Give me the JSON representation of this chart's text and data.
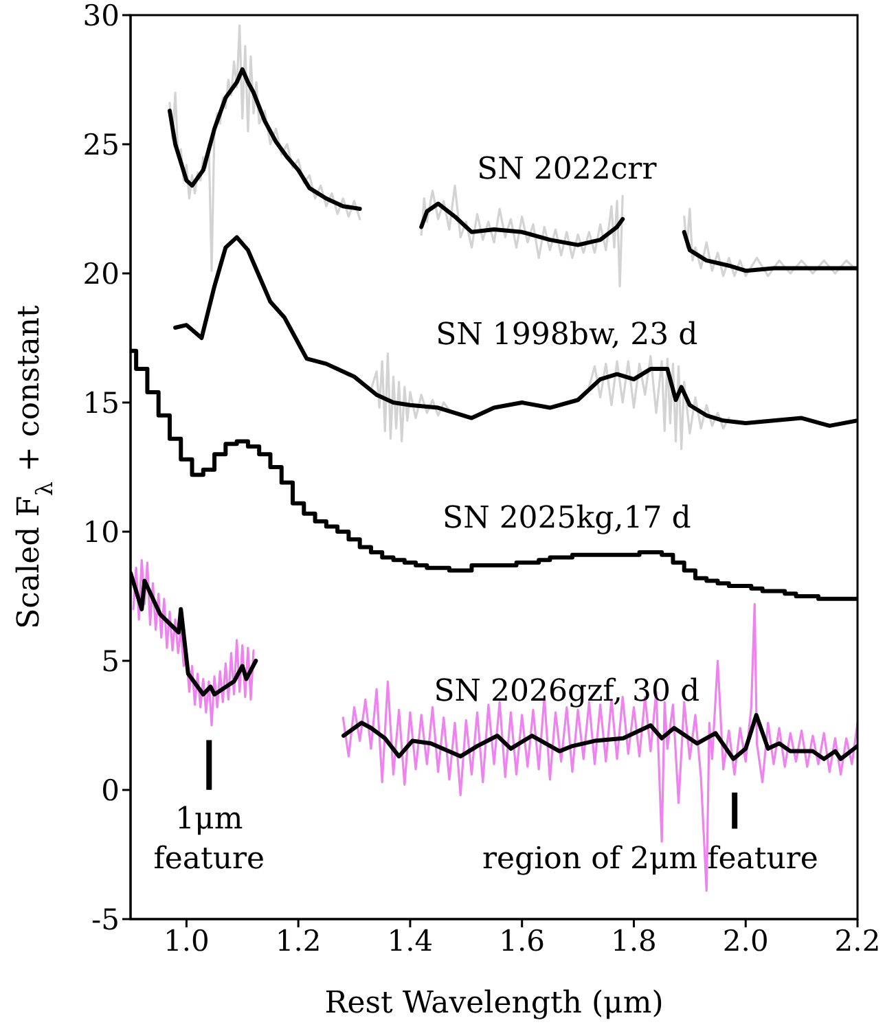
{
  "chart_data": {
    "type": "line",
    "xlabel": "Rest Wavelength (μm)",
    "ylabel": "Scaled F$_{λ}$ + constant",
    "xlim": [
      0.9,
      2.2
    ],
    "xticks": [
      {
        "value": 1,
        "label": "1.0"
      },
      1.2,
      1.4,
      1.6,
      1.8,
      {
        "value": 2,
        "label": "2.0"
      },
      2.2
    ],
    "ylim": [
      -5,
      30
    ],
    "yticks": [
      -5,
      0,
      5,
      10,
      15,
      20,
      25,
      30
    ],
    "grid": false,
    "legend": false,
    "marker": "none",
    "series": [
      {
        "color": "#d3d3d3",
        "x": [
          0.97,
          0.975,
          0.98,
          0.985,
          0.99,
          0.995,
          1.0,
          1.005,
          1.01,
          1.015,
          1.02,
          1.025,
          1.03,
          1.035,
          1.04,
          1.045,
          1.05,
          1.055,
          1.06,
          1.065,
          1.07,
          1.075,
          1.08,
          1.085,
          1.09,
          1.095,
          1.1,
          1.105,
          1.11,
          1.115,
          1.12,
          1.125,
          1.13,
          1.14,
          1.15,
          1.16,
          1.17,
          1.18,
          1.19,
          1.2,
          1.21,
          1.22,
          1.23,
          1.24,
          1.25,
          1.26,
          1.27,
          1.28,
          1.29,
          1.3,
          1.31,
          1.36,
          1.42,
          1.425,
          1.43,
          1.44,
          1.45,
          1.46,
          1.47,
          1.48,
          1.49,
          1.5,
          1.51,
          1.52,
          1.53,
          1.54,
          1.55,
          1.56,
          1.57,
          1.58,
          1.59,
          1.6,
          1.61,
          1.62,
          1.63,
          1.64,
          1.65,
          1.66,
          1.67,
          1.68,
          1.69,
          1.7,
          1.71,
          1.72,
          1.73,
          1.74,
          1.75,
          1.76,
          1.765,
          1.77,
          1.775,
          1.78,
          1.84,
          1.89,
          1.895,
          1.9,
          1.905,
          1.91,
          1.92,
          1.93,
          1.94,
          1.95,
          1.96,
          1.97,
          1.98,
          1.99,
          2.0,
          2.02,
          2.04,
          2.06,
          2.08,
          2.1,
          2.12,
          2.14,
          2.16,
          2.18,
          2.2
        ],
        "values": [
          26.6,
          25.2,
          27.0,
          24.5,
          24.8,
          23.6,
          24.2,
          22.9,
          23.8,
          23.1,
          23.9,
          23.6,
          24.5,
          24.1,
          25.0,
          20.1,
          25.6,
          26.2,
          25.8,
          26.8,
          26.4,
          27.5,
          26.9,
          28.2,
          27.2,
          29.6,
          26.0,
          28.8,
          25.5,
          28.4,
          26.2,
          27.4,
          25.8,
          26.3,
          25.0,
          25.6,
          24.6,
          25.0,
          24.1,
          24.4,
          23.5,
          23.8,
          22.9,
          23.4,
          22.6,
          23.1,
          22.3,
          22.9,
          22.2,
          22.8,
          22.1,
          null,
          21.5,
          22.9,
          22.0,
          23.2,
          22.1,
          22.8,
          21.7,
          23.4,
          21.4,
          22.0,
          21.0,
          22.3,
          21.3,
          22.0,
          21.2,
          22.5,
          21.4,
          22.1,
          21.0,
          22.2,
          21.2,
          21.9,
          20.6,
          21.8,
          20.9,
          21.7,
          20.7,
          21.6,
          20.6,
          21.5,
          20.8,
          21.6,
          20.8,
          21.9,
          20.9,
          22.6,
          21.0,
          22.8,
          19.5,
          23.0,
          null,
          22.2,
          21.0,
          22.5,
          20.5,
          21.0,
          20.2,
          21.2,
          20.1,
          20.8,
          19.9,
          20.6,
          19.9,
          20.5,
          19.9,
          20.6,
          19.9,
          20.5,
          20.0,
          20.5,
          20.0,
          20.5,
          20.0,
          20.5,
          20.1
        ]
      },
      {
        "name": "SN 2022crr",
        "color": "#000000",
        "x": [
          0.97,
          0.98,
          1.0,
          1.01,
          1.03,
          1.05,
          1.07,
          1.09,
          1.1,
          1.11,
          1.12,
          1.14,
          1.16,
          1.18,
          1.2,
          1.22,
          1.25,
          1.28,
          1.31,
          1.36,
          1.42,
          1.43,
          1.45,
          1.48,
          1.51,
          1.55,
          1.6,
          1.65,
          1.7,
          1.74,
          1.77,
          1.78,
          1.84,
          1.89,
          1.9,
          1.93,
          1.97,
          2.0,
          2.05,
          2.1,
          2.15,
          2.2
        ],
        "values": [
          26.3,
          25.0,
          23.6,
          23.4,
          24.0,
          25.6,
          26.8,
          27.4,
          27.9,
          27.4,
          27.0,
          25.9,
          25.1,
          24.5,
          24.0,
          23.3,
          22.9,
          22.6,
          22.5,
          null,
          21.8,
          22.4,
          22.7,
          22.2,
          21.6,
          21.7,
          21.6,
          21.3,
          21.1,
          21.3,
          21.8,
          22.1,
          null,
          21.6,
          20.9,
          20.5,
          20.3,
          20.1,
          20.2,
          20.2,
          20.2,
          20.2
        ]
      },
      {
        "color": "#d3d3d3",
        "x": [
          1.33,
          1.34,
          1.345,
          1.35,
          1.355,
          1.36,
          1.365,
          1.37,
          1.375,
          1.38,
          1.385,
          1.39,
          1.395,
          1.4,
          1.41,
          1.42,
          1.43,
          1.44,
          1.45,
          1.46,
          1.47,
          1.6,
          1.72,
          1.73,
          1.74,
          1.75,
          1.76,
          1.77,
          1.78,
          1.79,
          1.8,
          1.81,
          1.82,
          1.83,
          1.84,
          1.85,
          1.855,
          1.86,
          1.865,
          1.87,
          1.875,
          1.88,
          1.885,
          1.89,
          1.9,
          1.91,
          1.92,
          1.93,
          1.94,
          1.95,
          1.96,
          1.97
        ],
        "values": [
          15.5,
          16.2,
          14.8,
          16.6,
          13.9,
          16.9,
          13.6,
          16.0,
          14.0,
          15.8,
          13.5,
          15.6,
          14.3,
          15.4,
          14.4,
          15.3,
          14.6,
          15.1,
          14.5,
          15.0,
          14.7,
          null,
          15.6,
          16.4,
          15.2,
          16.5,
          14.9,
          16.6,
          15.0,
          16.6,
          14.8,
          16.5,
          15.3,
          16.8,
          14.6,
          16.6,
          13.9,
          16.7,
          14.2,
          16.5,
          13.5,
          16.4,
          13.2,
          15.8,
          13.8,
          15.2,
          14.0,
          14.9,
          14.1,
          14.6,
          14.0,
          14.4
        ]
      },
      {
        "name": "SN 1998bw, 23 d",
        "color": "#000000",
        "x": [
          0.98,
          1.0,
          1.027,
          1.05,
          1.07,
          1.09,
          1.11,
          1.13,
          1.15,
          1.175,
          1.2,
          1.215,
          1.25,
          1.3,
          1.34,
          1.37,
          1.4,
          1.45,
          1.48,
          1.51,
          1.55,
          1.6,
          1.65,
          1.7,
          1.74,
          1.77,
          1.8,
          1.83,
          1.86,
          1.875,
          1.885,
          1.9,
          1.93,
          1.96,
          2.0,
          2.05,
          2.1,
          2.15,
          2.2
        ],
        "values": [
          17.9,
          18.0,
          17.5,
          19.5,
          21.0,
          21.4,
          20.9,
          19.9,
          18.9,
          18.3,
          17.3,
          16.7,
          16.5,
          16.0,
          15.3,
          15.0,
          14.9,
          14.8,
          14.6,
          14.4,
          14.8,
          15.0,
          14.8,
          15.1,
          15.9,
          16.1,
          15.9,
          16.3,
          16.3,
          15.1,
          15.6,
          14.9,
          14.5,
          14.3,
          14.2,
          14.3,
          14.4,
          14.1,
          14.3
        ]
      },
      {
        "type": "step",
        "name": "SN 2025kg,17 d",
        "color": "#000000",
        "x": [
          0.9,
          0.92,
          0.94,
          0.96,
          0.98,
          1.0,
          1.02,
          1.04,
          1.06,
          1.08,
          1.1,
          1.12,
          1.14,
          1.16,
          1.18,
          1.2,
          1.22,
          1.24,
          1.26,
          1.28,
          1.3,
          1.32,
          1.34,
          1.36,
          1.38,
          1.4,
          1.42,
          1.44,
          1.46,
          1.48,
          1.5,
          1.52,
          1.54,
          1.56,
          1.58,
          1.6,
          1.62,
          1.64,
          1.66,
          1.68,
          1.7,
          1.72,
          1.74,
          1.76,
          1.78,
          1.8,
          1.82,
          1.84,
          1.86,
          1.88,
          1.9,
          1.92,
          1.94,
          1.96,
          1.98,
          2.0,
          2.02,
          2.04,
          2.06,
          2.08,
          2.1,
          2.12,
          2.14,
          2.16,
          2.18,
          2.2
        ],
        "values": [
          17.0,
          16.3,
          15.4,
          14.5,
          13.6,
          12.8,
          12.2,
          12.4,
          13.0,
          13.4,
          13.5,
          13.3,
          13.0,
          12.5,
          11.9,
          11.1,
          10.7,
          10.4,
          10.2,
          10.0,
          9.7,
          9.4,
          9.2,
          9.0,
          8.9,
          8.8,
          8.7,
          8.6,
          8.6,
          8.5,
          8.5,
          8.7,
          8.7,
          8.7,
          8.7,
          8.8,
          8.8,
          8.9,
          9.0,
          9.0,
          9.1,
          9.1,
          9.1,
          9.1,
          9.1,
          9.1,
          9.2,
          9.2,
          9.1,
          8.8,
          8.5,
          8.2,
          8.1,
          8.0,
          7.9,
          7.9,
          7.8,
          7.7,
          7.7,
          7.6,
          7.5,
          7.5,
          7.4,
          7.4,
          7.4,
          7.4
        ]
      },
      {
        "color": "#ee82ee",
        "x": [
          0.905,
          0.91,
          0.915,
          0.92,
          0.925,
          0.93,
          0.935,
          0.94,
          0.945,
          0.95,
          0.955,
          0.96,
          0.965,
          0.97,
          0.975,
          0.98,
          0.985,
          0.99,
          0.995,
          1.0,
          1.005,
          1.01,
          1.015,
          1.02,
          1.025,
          1.03,
          1.035,
          1.04,
          1.045,
          1.05,
          1.055,
          1.06,
          1.065,
          1.07,
          1.075,
          1.08,
          1.085,
          1.09,
          1.095,
          1.1,
          1.105,
          1.11,
          1.115,
          1.12,
          1.2,
          1.28,
          1.29,
          1.3,
          1.31,
          1.32,
          1.33,
          1.34,
          1.35,
          1.36,
          1.37,
          1.38,
          1.39,
          1.4,
          1.41,
          1.42,
          1.43,
          1.44,
          1.45,
          1.46,
          1.47,
          1.48,
          1.49,
          1.5,
          1.51,
          1.52,
          1.53,
          1.54,
          1.55,
          1.56,
          1.57,
          1.58,
          1.59,
          1.6,
          1.61,
          1.62,
          1.63,
          1.64,
          1.65,
          1.66,
          1.67,
          1.68,
          1.69,
          1.7,
          1.71,
          1.72,
          1.73,
          1.74,
          1.75,
          1.76,
          1.77,
          1.78,
          1.79,
          1.8,
          1.81,
          1.82,
          1.83,
          1.84,
          1.85,
          1.855,
          1.86,
          1.87,
          1.88,
          1.89,
          1.9,
          1.91,
          1.92,
          1.93,
          1.935,
          1.94,
          1.95,
          1.96,
          1.97,
          1.98,
          1.99,
          2.0,
          2.01,
          2.016,
          2.02,
          2.03,
          2.04,
          2.05,
          2.06,
          2.07,
          2.08,
          2.09,
          2.1,
          2.11,
          2.12,
          2.13,
          2.14,
          2.15,
          2.16,
          2.17,
          2.18,
          2.19,
          2.2
        ],
        "values": [
          7.0,
          8.6,
          6.6,
          8.9,
          7.2,
          8.8,
          6.4,
          8.0,
          6.2,
          7.6,
          5.9,
          7.4,
          5.5,
          6.9,
          5.4,
          6.6,
          5.3,
          6.2,
          4.8,
          5.2,
          3.8,
          4.8,
          3.3,
          4.5,
          3.2,
          4.3,
          3.0,
          4.2,
          2.5,
          4.4,
          3.2,
          4.6,
          3.4,
          4.9,
          3.5,
          5.3,
          3.7,
          5.8,
          3.8,
          5.6,
          3.6,
          5.5,
          3.5,
          5.4,
          null,
          2.8,
          1.3,
          3.2,
          1.9,
          3.5,
          1.6,
          3.9,
          0.3,
          4.2,
          0.6,
          3.1,
          0.2,
          3.0,
          0.8,
          2.9,
          1.0,
          3.2,
          0.7,
          2.8,
          0.4,
          2.6,
          -0.2,
          2.7,
          0.6,
          3.0,
          0.3,
          3.3,
          1.0,
          3.4,
          0.5,
          3.0,
          0.6,
          2.9,
          0.9,
          3.1,
          0.8,
          3.6,
          0.4,
          3.0,
          1.1,
          3.2,
          0.7,
          3.1,
          1.2,
          3.4,
          1.0,
          3.3,
          1.1,
          3.5,
          1.2,
          3.6,
          1.4,
          3.2,
          1.3,
          3.6,
          1.5,
          3.8,
          -2.0,
          3.4,
          1.6,
          3.3,
          -0.5,
          3.4,
          1.2,
          2.9,
          0.5,
          -3.9,
          2.6,
          1.2,
          5.0,
          0.8,
          2.3,
          0.6,
          2.4,
          1.1,
          3.2,
          7.2,
          1.8,
          0.3,
          2.6,
          1.0,
          2.4,
          0.9,
          2.2,
          1.1,
          2.3,
          0.9,
          2.1,
          1.0,
          2.2,
          0.7,
          2.0,
          0.6,
          2.0,
          1.0,
          2.6
        ]
      },
      {
        "name": "SN 2026gzf, 30 d",
        "color": "#000000",
        "x": [
          0.9,
          0.92,
          0.925,
          0.953,
          0.986,
          0.99,
          1.003,
          1.03,
          1.043,
          1.05,
          1.085,
          1.1,
          1.107,
          1.124,
          1.2,
          1.281,
          1.313,
          1.33,
          1.355,
          1.38,
          1.404,
          1.437,
          1.49,
          1.52,
          1.556,
          1.58,
          1.618,
          1.667,
          1.69,
          1.73,
          1.781,
          1.83,
          1.85,
          1.872,
          1.913,
          1.946,
          1.978,
          2.0,
          2.019,
          2.04,
          2.06,
          2.08,
          2.12,
          2.14,
          2.16,
          2.17,
          2.2
        ],
        "values": [
          8.4,
          7.0,
          8.1,
          6.8,
          6.1,
          7.0,
          4.5,
          3.7,
          4.0,
          3.7,
          4.2,
          4.8,
          4.3,
          5.0,
          null,
          2.1,
          2.6,
          2.4,
          2.0,
          1.3,
          1.9,
          1.8,
          1.3,
          1.7,
          2.1,
          1.6,
          2.1,
          1.5,
          1.7,
          1.9,
          2.0,
          2.5,
          2.0,
          2.4,
          1.8,
          2.2,
          1.2,
          1.6,
          2.9,
          1.6,
          1.8,
          1.5,
          1.5,
          1.2,
          1.5,
          1.2,
          1.7
        ]
      }
    ],
    "annotations": [
      "1μm\nfeature",
      "region of 2μm feature"
    ]
  }
}
